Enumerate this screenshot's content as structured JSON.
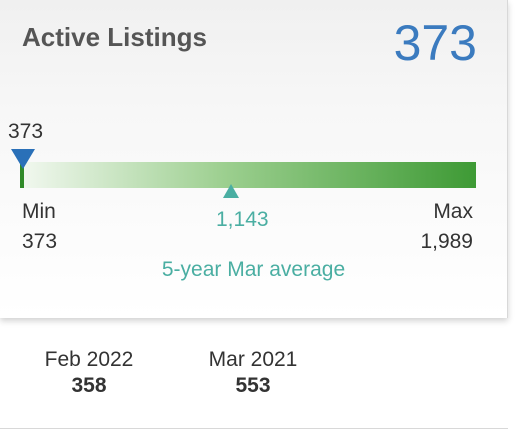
{
  "card": {
    "title": "Active Listings",
    "current_value": "373"
  },
  "range": {
    "current_label": "373",
    "min_label": "Min",
    "min_value": "373",
    "max_label": "Max",
    "max_value": "1,989",
    "average_value": "1,143",
    "average_caption": "5-year Mar average",
    "colors": {
      "pointer": "#2a70b8",
      "average": "#4aaea2",
      "bar_end": "#3e9a35"
    }
  },
  "history": [
    {
      "period": "Feb 2022",
      "value": "358"
    },
    {
      "period": "Mar 2021",
      "value": "553"
    }
  ]
}
